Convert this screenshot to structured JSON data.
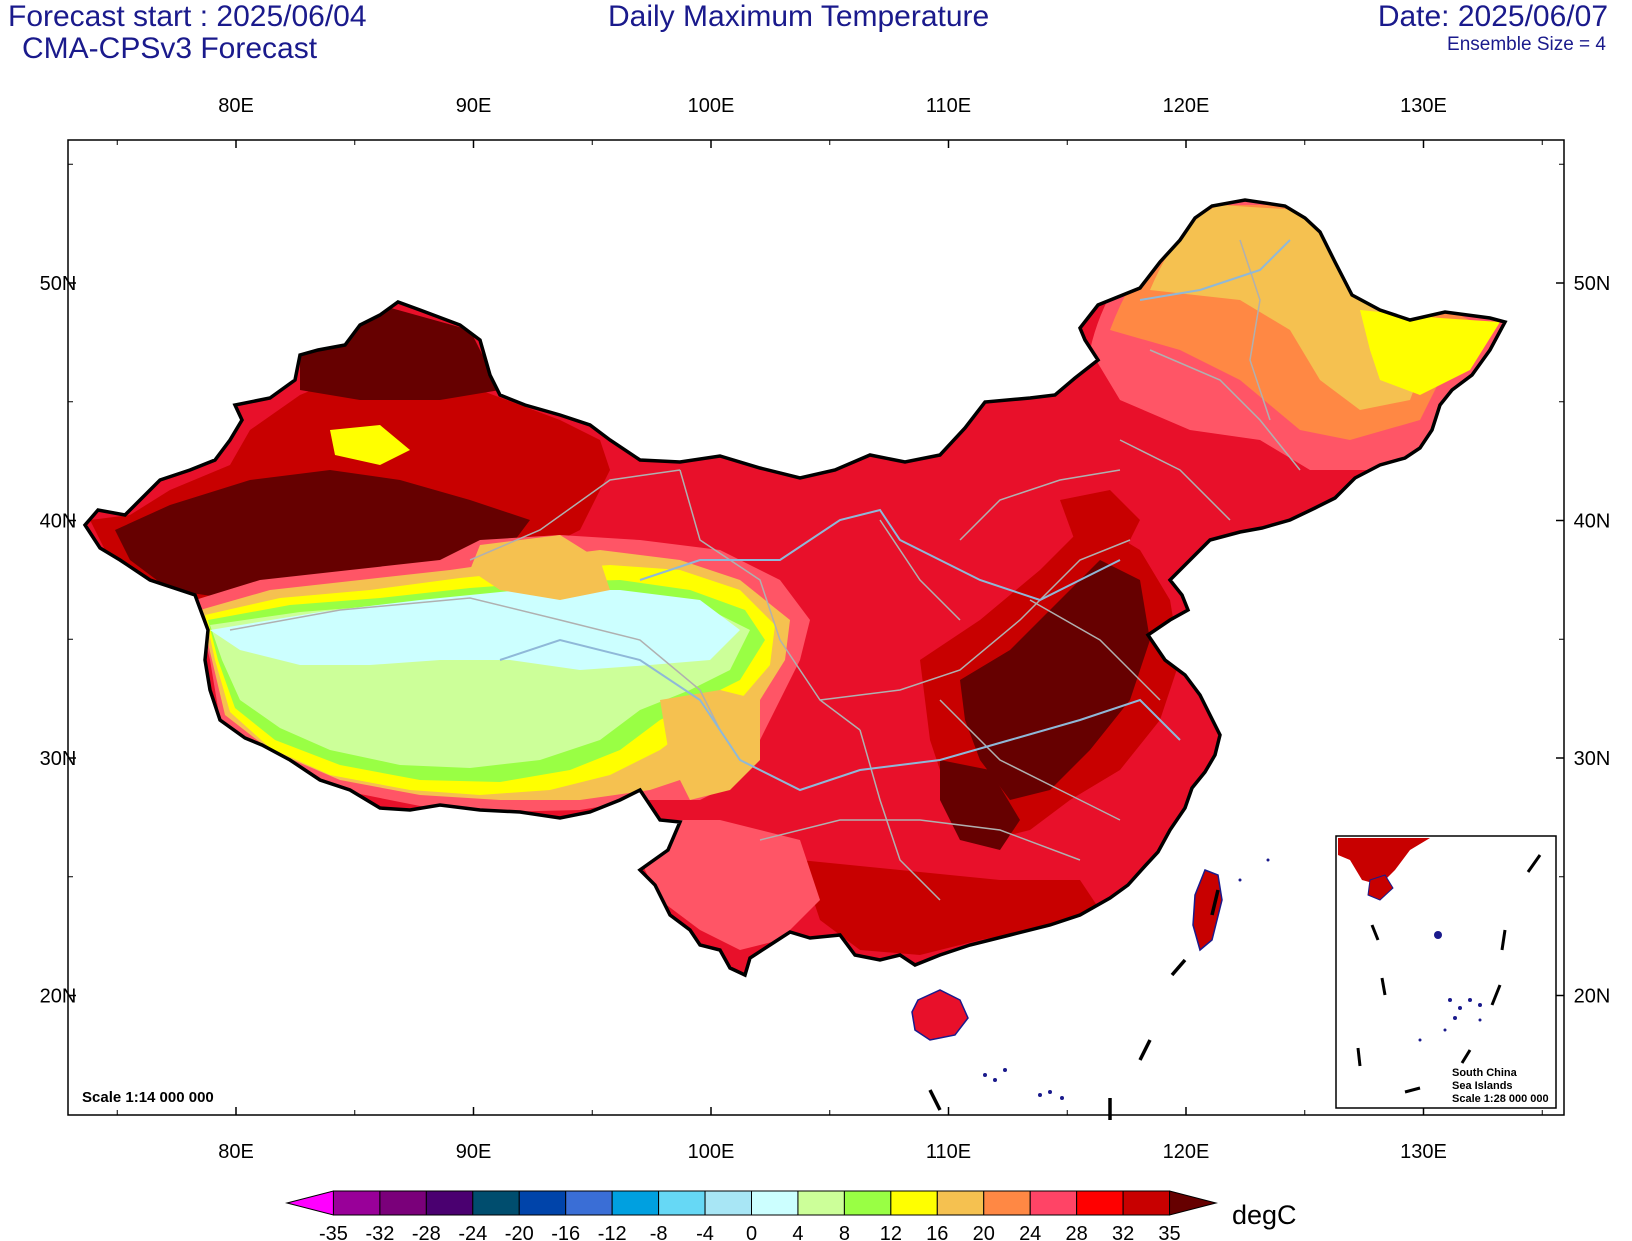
{
  "header": {
    "forecast_start": "Forecast start : 2025/06/04",
    "model": "CMA-CPSv3 Forecast",
    "title": "Daily Maximum Temperature",
    "date": "Date: 2025/06/07",
    "ensemble": "Ensemble Size = 4"
  },
  "map": {
    "lon_labels": [
      "80E",
      "90E",
      "100E",
      "110E",
      "120E",
      "130E"
    ],
    "lat_labels": [
      "50N",
      "40N",
      "30N",
      "20N"
    ],
    "scale_main": "Scale 1:14 000 000",
    "inset_title_1": "South China",
    "inset_title_2": "Sea Islands",
    "inset_scale": "Scale 1:28 000 000"
  },
  "colorbar": {
    "unit": "degC",
    "labels": [
      "-35",
      "-32",
      "-28",
      "-24",
      "-20",
      "-16",
      "-12",
      "-8",
      "-4",
      "0",
      "4",
      "8",
      "12",
      "16",
      "20",
      "24",
      "28",
      "32",
      "35"
    ],
    "colors": [
      "#ff00ff",
      "#990099",
      "#7a007a",
      "#4a0070",
      "#004d6e",
      "#0044aa",
      "#3a6ed6",
      "#00a0e0",
      "#66d8f5",
      "#a8e6f5",
      "#ccffff",
      "#ccff99",
      "#99ff44",
      "#ffff00",
      "#f5c150",
      "#ff8844",
      "#ff4466",
      "#ff0000",
      "#c80000",
      "#660000"
    ]
  }
}
